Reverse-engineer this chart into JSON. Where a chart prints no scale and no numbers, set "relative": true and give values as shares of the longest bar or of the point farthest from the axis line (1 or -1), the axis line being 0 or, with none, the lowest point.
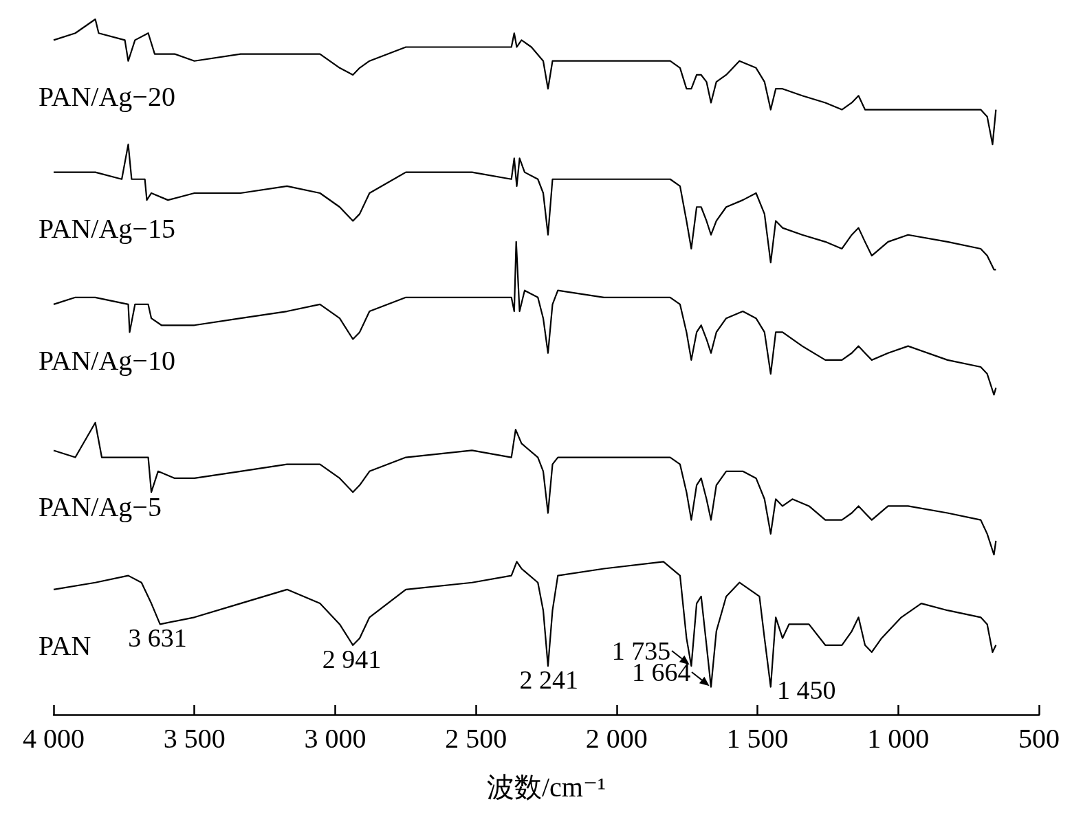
{
  "chart_data": {
    "type": "line",
    "relative": true,
    "xlabel": "波数/cm⁻¹",
    "xlim": [
      4000,
      500
    ],
    "xticks": [
      {
        "value": 4000,
        "label": "4 000"
      },
      {
        "value": 3500,
        "label": "3 500"
      },
      {
        "value": 3000,
        "label": "3 000"
      },
      {
        "value": 2500,
        "label": "2 500"
      },
      {
        "value": 2000,
        "label": "2 000"
      },
      {
        "value": 1500,
        "label": "1 500"
      },
      {
        "value": 1000,
        "label": "1 000"
      },
      500
    ],
    "grid": false,
    "series": [
      {
        "name": "PAN/Ag−20",
        "color": "#000000",
        "x": [
          4000,
          3923,
          3852,
          3840,
          3747,
          3735,
          3711,
          3664,
          3641,
          3570,
          3500,
          3336,
          3171,
          3054,
          2984,
          2937,
          2913,
          2878,
          2749,
          2514,
          2374,
          2364,
          2355,
          2338,
          2303,
          2261,
          2244,
          2228,
          2209,
          2045,
          1810,
          1775,
          1752,
          1735,
          1716,
          1700,
          1681,
          1665,
          1646,
          1611,
          1564,
          1505,
          1475,
          1453,
          1435,
          1411,
          1341,
          1259,
          1200,
          1165,
          1141,
          1118,
          1083,
          1036,
          965,
          825,
          707,
          684,
          665,
          653
        ],
        "values": [
          0.97,
          0.98,
          1.0,
          0.98,
          0.97,
          0.94,
          0.97,
          0.98,
          0.95,
          0.95,
          0.94,
          0.95,
          0.95,
          0.95,
          0.93,
          0.92,
          0.93,
          0.94,
          0.96,
          0.96,
          0.96,
          0.98,
          0.96,
          0.97,
          0.96,
          0.94,
          0.9,
          0.94,
          0.94,
          0.94,
          0.94,
          0.93,
          0.9,
          0.9,
          0.92,
          0.92,
          0.91,
          0.88,
          0.91,
          0.92,
          0.94,
          0.93,
          0.91,
          0.87,
          0.9,
          0.9,
          0.89,
          0.88,
          0.87,
          0.88,
          0.89,
          0.87,
          0.87,
          0.87,
          0.87,
          0.87,
          0.87,
          0.86,
          0.82,
          0.87
        ]
      },
      {
        "name": "PAN/Ag−15",
        "color": "#000000",
        "x": [
          4000,
          3923,
          3852,
          3758,
          3735,
          3723,
          3676,
          3669,
          3653,
          3594,
          3500,
          3336,
          3171,
          3054,
          2984,
          2937,
          2913,
          2878,
          2749,
          2514,
          2374,
          2364,
          2355,
          2345,
          2327,
          2280,
          2261,
          2244,
          2228,
          2209,
          2045,
          1810,
          1775,
          1752,
          1735,
          1716,
          1700,
          1681,
          1665,
          1646,
          1611,
          1552,
          1505,
          1475,
          1453,
          1435,
          1411,
          1341,
          1259,
          1200,
          1165,
          1141,
          1118,
          1094,
          1036,
          965,
          825,
          707,
          684,
          660,
          653
        ],
        "values": [
          0.78,
          0.78,
          0.78,
          0.77,
          0.82,
          0.77,
          0.77,
          0.74,
          0.75,
          0.74,
          0.75,
          0.75,
          0.76,
          0.75,
          0.73,
          0.71,
          0.72,
          0.75,
          0.78,
          0.78,
          0.77,
          0.8,
          0.76,
          0.8,
          0.78,
          0.77,
          0.75,
          0.69,
          0.77,
          0.77,
          0.77,
          0.77,
          0.76,
          0.71,
          0.67,
          0.73,
          0.73,
          0.71,
          0.69,
          0.71,
          0.73,
          0.74,
          0.75,
          0.72,
          0.65,
          0.71,
          0.7,
          0.69,
          0.68,
          0.67,
          0.69,
          0.7,
          0.68,
          0.66,
          0.68,
          0.69,
          0.68,
          0.67,
          0.66,
          0.64,
          0.64
        ]
      },
      {
        "name": "PAN/Ag−10",
        "color": "#000000",
        "x": [
          4000,
          3923,
          3852,
          3735,
          3730,
          3711,
          3664,
          3653,
          3617,
          3500,
          3336,
          3171,
          3054,
          2984,
          2937,
          2913,
          2878,
          2749,
          2514,
          2374,
          2364,
          2357,
          2345,
          2327,
          2280,
          2261,
          2244,
          2228,
          2209,
          2045,
          1810,
          1775,
          1752,
          1735,
          1716,
          1700,
          1681,
          1665,
          1646,
          1611,
          1552,
          1505,
          1475,
          1453,
          1435,
          1411,
          1341,
          1259,
          1200,
          1165,
          1141,
          1118,
          1094,
          1036,
          965,
          825,
          707,
          684,
          660,
          653
        ],
        "values": [
          0.59,
          0.6,
          0.6,
          0.59,
          0.55,
          0.59,
          0.59,
          0.57,
          0.56,
          0.56,
          0.57,
          0.58,
          0.59,
          0.57,
          0.54,
          0.55,
          0.58,
          0.6,
          0.6,
          0.6,
          0.58,
          0.68,
          0.58,
          0.61,
          0.6,
          0.57,
          0.52,
          0.59,
          0.61,
          0.6,
          0.6,
          0.59,
          0.55,
          0.51,
          0.55,
          0.56,
          0.54,
          0.52,
          0.55,
          0.57,
          0.58,
          0.57,
          0.55,
          0.49,
          0.55,
          0.55,
          0.53,
          0.51,
          0.51,
          0.52,
          0.53,
          0.52,
          0.51,
          0.52,
          0.53,
          0.51,
          0.5,
          0.49,
          0.46,
          0.47
        ]
      },
      {
        "name": "PAN/Ag−5",
        "color": "#000000",
        "x": [
          4000,
          3923,
          3852,
          3829,
          3735,
          3664,
          3653,
          3629,
          3570,
          3500,
          3336,
          3171,
          3054,
          2984,
          2937,
          2913,
          2878,
          2749,
          2514,
          2374,
          2359,
          2338,
          2280,
          2261,
          2244,
          2228,
          2209,
          2045,
          1810,
          1775,
          1752,
          1735,
          1716,
          1700,
          1681,
          1665,
          1646,
          1611,
          1552,
          1505,
          1475,
          1453,
          1435,
          1411,
          1376,
          1317,
          1259,
          1200,
          1165,
          1141,
          1118,
          1094,
          1036,
          965,
          825,
          707,
          684,
          660,
          653
        ],
        "values": [
          0.38,
          0.37,
          0.42,
          0.37,
          0.37,
          0.37,
          0.32,
          0.35,
          0.34,
          0.34,
          0.35,
          0.36,
          0.36,
          0.34,
          0.32,
          0.33,
          0.35,
          0.37,
          0.38,
          0.37,
          0.41,
          0.39,
          0.37,
          0.35,
          0.29,
          0.36,
          0.37,
          0.37,
          0.37,
          0.36,
          0.32,
          0.28,
          0.33,
          0.34,
          0.31,
          0.28,
          0.33,
          0.35,
          0.35,
          0.34,
          0.31,
          0.26,
          0.31,
          0.3,
          0.31,
          0.3,
          0.28,
          0.28,
          0.29,
          0.3,
          0.29,
          0.28,
          0.3,
          0.3,
          0.29,
          0.28,
          0.26,
          0.23,
          0.25
        ]
      },
      {
        "name": "PAN",
        "color": "#000000",
        "x": [
          4000,
          3852,
          3735,
          3688,
          3653,
          3622,
          3500,
          3336,
          3171,
          3054,
          2984,
          2937,
          2913,
          2878,
          2749,
          2514,
          2374,
          2355,
          2338,
          2280,
          2261,
          2244,
          2228,
          2209,
          2045,
          1834,
          1775,
          1752,
          1735,
          1716,
          1700,
          1681,
          1665,
          1646,
          1611,
          1564,
          1493,
          1475,
          1453,
          1435,
          1411,
          1388,
          1317,
          1259,
          1200,
          1165,
          1141,
          1118,
          1094,
          1059,
          989,
          918,
          825,
          707,
          684,
          665,
          653
        ],
        "values": [
          0.18,
          0.19,
          0.2,
          0.19,
          0.16,
          0.13,
          0.14,
          0.16,
          0.18,
          0.16,
          0.13,
          0.1,
          0.11,
          0.14,
          0.18,
          0.19,
          0.2,
          0.22,
          0.21,
          0.19,
          0.15,
          0.07,
          0.15,
          0.2,
          0.21,
          0.22,
          0.2,
          0.11,
          0.07,
          0.16,
          0.17,
          0.1,
          0.04,
          0.12,
          0.17,
          0.19,
          0.17,
          0.11,
          0.04,
          0.14,
          0.11,
          0.13,
          0.13,
          0.1,
          0.1,
          0.12,
          0.14,
          0.1,
          0.09,
          0.11,
          0.14,
          0.16,
          0.15,
          0.14,
          0.13,
          0.09,
          0.1
        ]
      }
    ],
    "annotations": [
      {
        "text": "3 631",
        "x": 3631,
        "y": 0.13
      },
      {
        "text": "2 941",
        "x": 2941,
        "y": 0.1
      },
      {
        "text": "2 241",
        "x": 2241,
        "y": 0.07
      },
      {
        "text": "1 735",
        "x": 1735,
        "y": 0.07
      },
      {
        "text": "1 664",
        "x": 1664,
        "y": 0.04
      },
      {
        "text": "1 450",
        "x": 1450,
        "y": 0.04
      }
    ]
  }
}
